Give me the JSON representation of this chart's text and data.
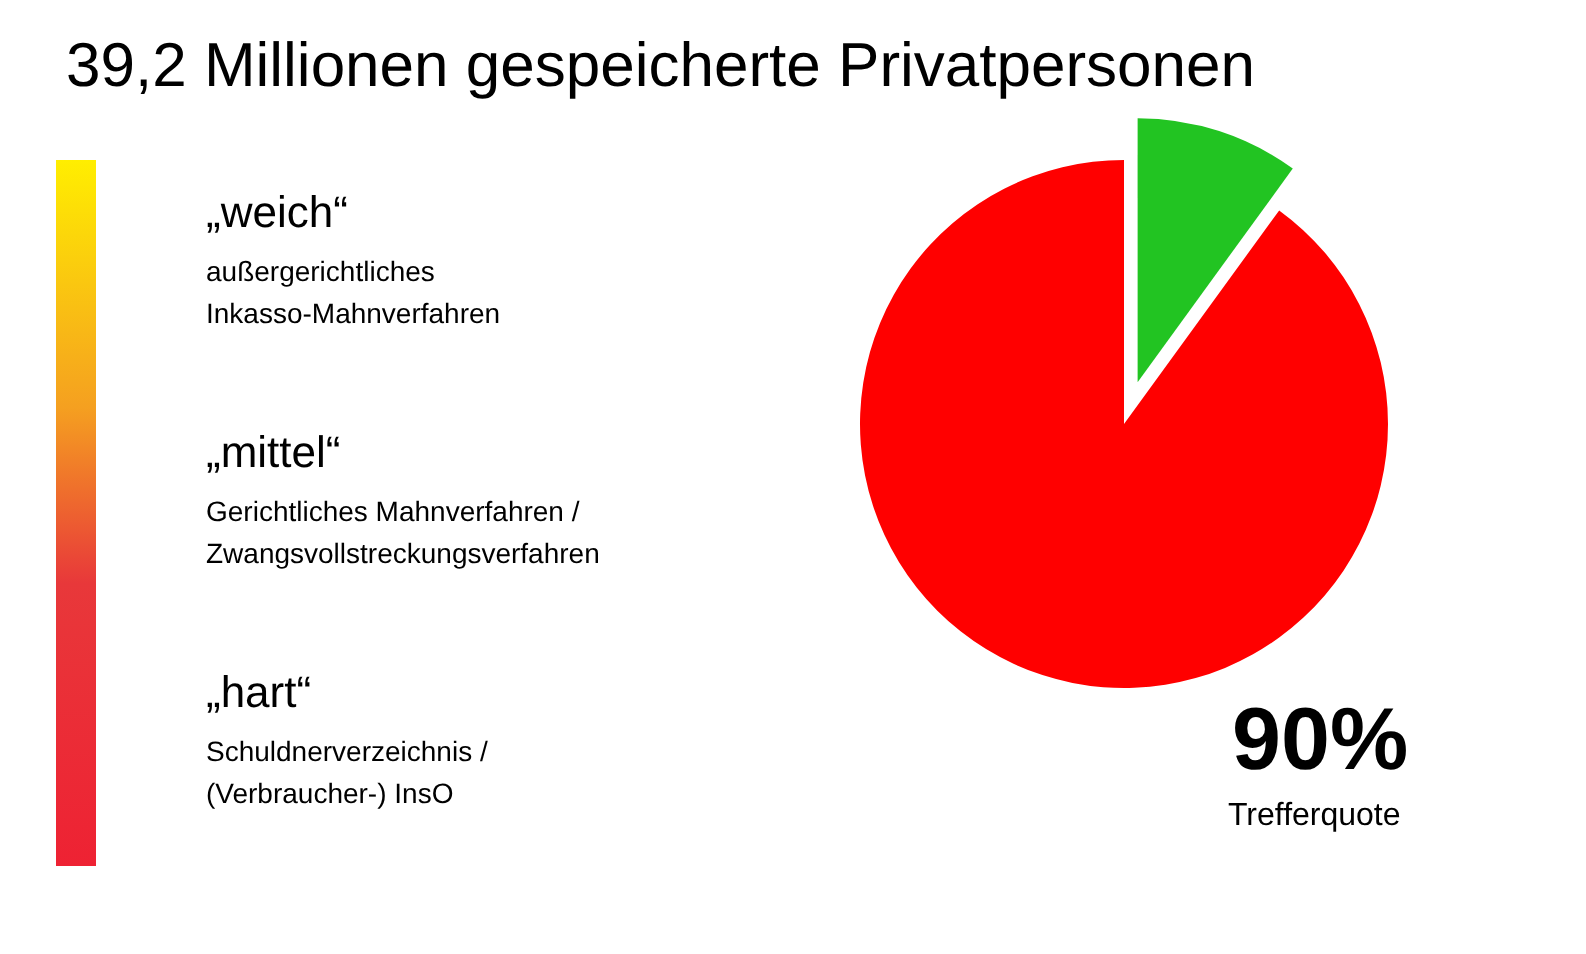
{
  "chart_data": {
    "type": "pie",
    "title": "39,2 Millionen gespeicherte Privatpersonen",
    "categories": [
      null,
      null
    ],
    "values": [
      90,
      10
    ],
    "colors": [
      "#ff0000",
      "#22c422"
    ],
    "annotations": [
      "„weich“",
      "außergerichtliches\nInkasso-Mahnverfahren",
      "„mittel“",
      "Gerichtliches Mahnverfahren /\nZwangsvollstreckungsverfahren",
      "„hart“",
      "Schuldnerverzeichnis /\n(Verbraucher-) InsO",
      "90%",
      "Trefferquote"
    ]
  }
}
